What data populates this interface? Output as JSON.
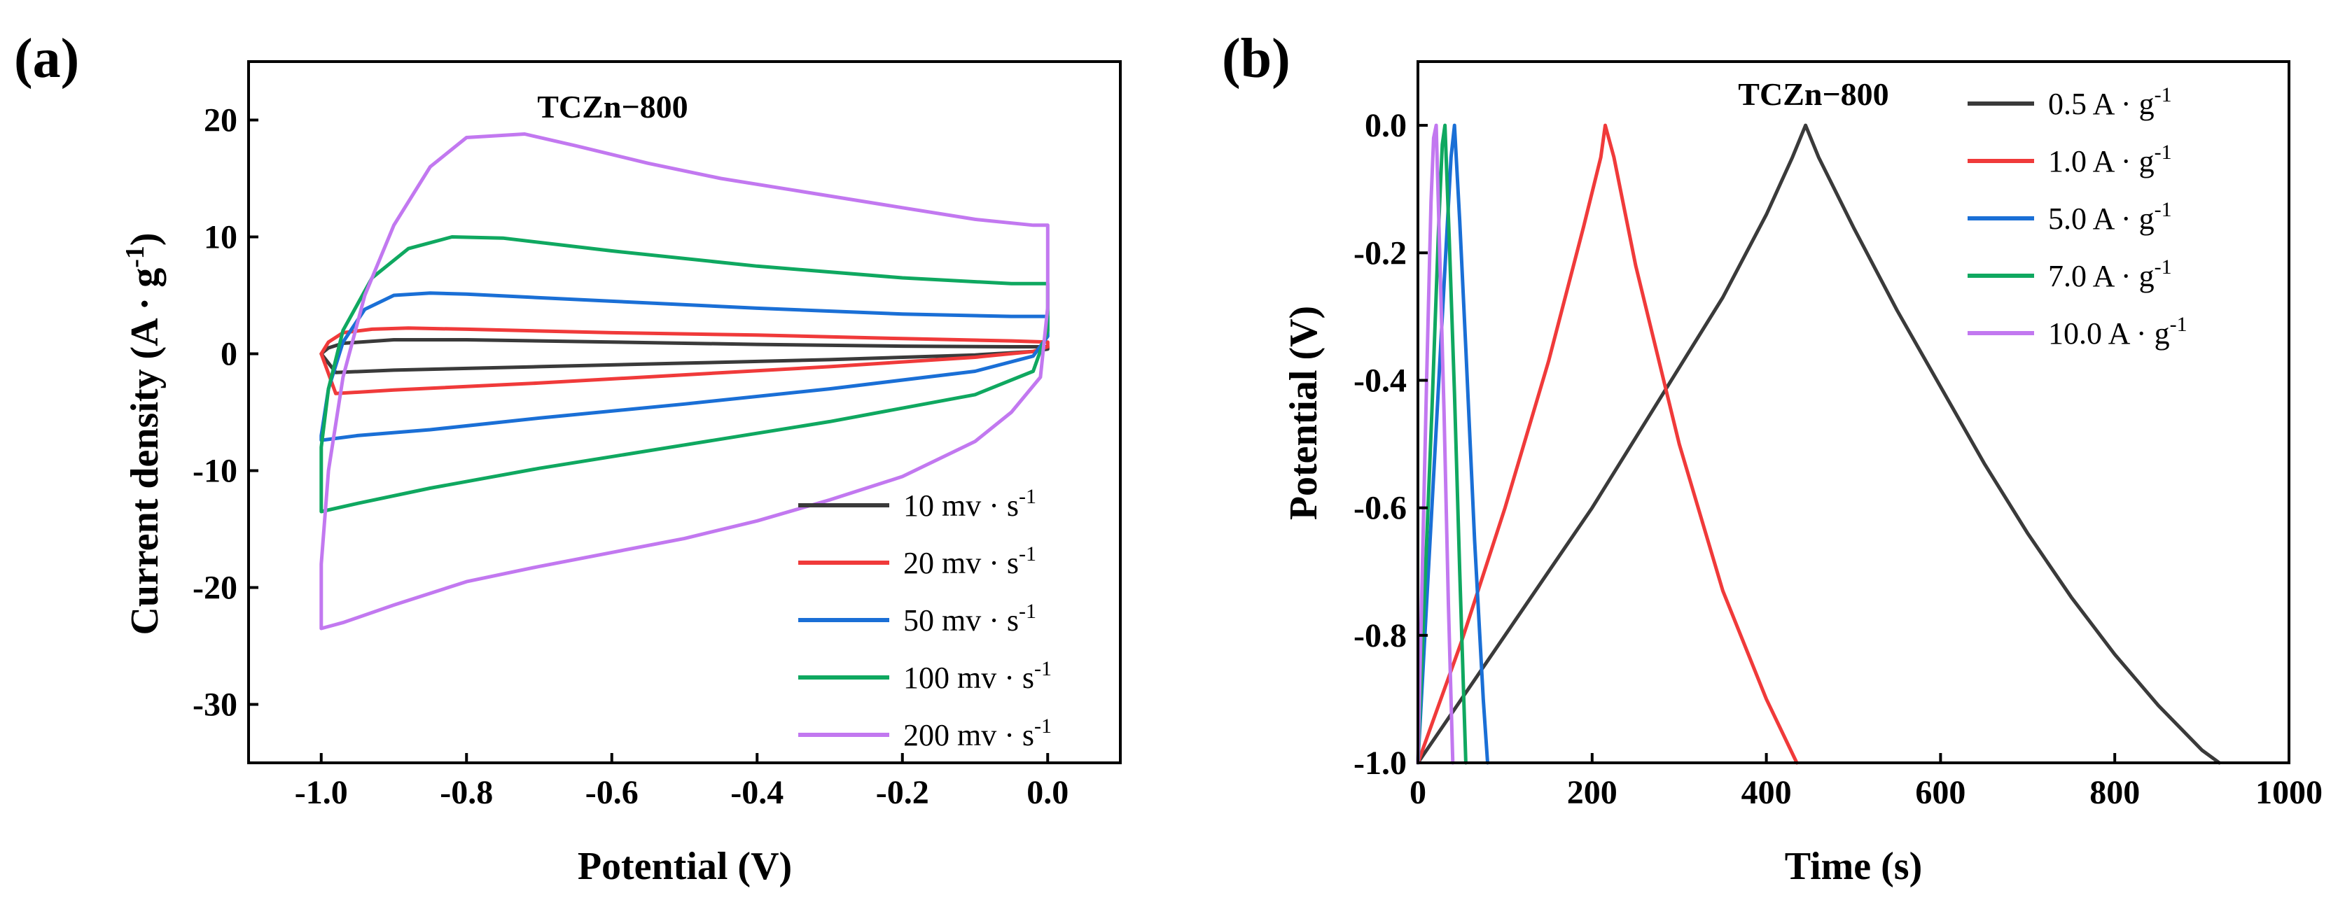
{
  "colors": {
    "black": "#3a3a3a",
    "red": "#f03a3a",
    "blue": "#1a6fd6",
    "green": "#0fa860",
    "violet": "#c278f0"
  },
  "chart_data": [
    {
      "type": "line",
      "panel_label": "(a)",
      "title": "TCZn−800",
      "xlabel": "Potential (V)",
      "ylabel": "Current density (A · g",
      "ylabel_sup": "-1",
      "ylabel_close": ")",
      "xlim": [
        -1.1,
        0.1
      ],
      "ylim": [
        -35,
        25
      ],
      "xticks": [
        -1.0,
        -0.8,
        -0.6,
        -0.4,
        -0.2,
        0.0
      ],
      "xtick_labels": [
        "-1.0",
        "-0.8",
        "-0.6",
        "-0.4",
        "-0.2",
        "0.0"
      ],
      "yticks": [
        -30,
        -20,
        -10,
        0,
        10,
        20
      ],
      "ytick_labels": [
        "-30",
        "-20",
        "-10",
        "0",
        "10",
        "20"
      ],
      "legend_position": "bottom-right",
      "series": [
        {
          "name": "10 mv · s",
          "unit_sup": "-1",
          "color_key": "black",
          "x": [
            -1.0,
            -0.99,
            -0.97,
            -0.9,
            -0.8,
            -0.6,
            -0.4,
            -0.2,
            -0.05,
            0.0,
            0.0,
            -0.02,
            -0.1,
            -0.3,
            -0.5,
            -0.7,
            -0.9,
            -0.98,
            -1.0
          ],
          "y": [
            0.0,
            0.5,
            0.9,
            1.2,
            1.2,
            1.0,
            0.8,
            0.65,
            0.6,
            0.6,
            0.4,
            0.2,
            -0.1,
            -0.5,
            -0.8,
            -1.1,
            -1.4,
            -1.6,
            0.0
          ]
        },
        {
          "name": "20 mv · s",
          "unit_sup": "-1",
          "color_key": "red",
          "x": [
            -1.0,
            -0.99,
            -0.97,
            -0.93,
            -0.88,
            -0.8,
            -0.6,
            -0.4,
            -0.2,
            -0.05,
            0.0,
            0.0,
            -0.02,
            -0.1,
            -0.3,
            -0.5,
            -0.7,
            -0.9,
            -0.98,
            -1.0
          ],
          "y": [
            0.0,
            1.0,
            1.8,
            2.1,
            2.2,
            2.1,
            1.8,
            1.6,
            1.3,
            1.1,
            1.0,
            0.6,
            0.2,
            -0.3,
            -1.1,
            -1.8,
            -2.5,
            -3.1,
            -3.4,
            0.0
          ]
        },
        {
          "name": "50 mv · s",
          "unit_sup": "-1",
          "color_key": "blue",
          "x": [
            -1.0,
            -0.99,
            -0.97,
            -0.94,
            -0.9,
            -0.85,
            -0.8,
            -0.6,
            -0.4,
            -0.2,
            -0.05,
            0.0,
            0.0,
            -0.02,
            -0.1,
            -0.3,
            -0.5,
            -0.7,
            -0.85,
            -0.95,
            -1.0,
            -1.0
          ],
          "y": [
            -7.0,
            -3.0,
            1.0,
            3.8,
            5.0,
            5.2,
            5.1,
            4.5,
            3.9,
            3.4,
            3.2,
            3.2,
            1.5,
            -0.2,
            -1.5,
            -3.0,
            -4.3,
            -5.5,
            -6.5,
            -7.0,
            -7.4,
            -7.0
          ]
        },
        {
          "name": "100 mv · s",
          "unit_sup": "-1",
          "color_key": "green",
          "x": [
            -1.0,
            -1.0,
            -0.99,
            -0.97,
            -0.93,
            -0.88,
            -0.82,
            -0.75,
            -0.6,
            -0.4,
            -0.2,
            -0.05,
            0.0,
            0.0,
            -0.02,
            -0.1,
            -0.3,
            -0.5,
            -0.7,
            -0.85,
            -0.95,
            -1.0,
            -1.0
          ],
          "y": [
            -13.3,
            -8.0,
            -3.0,
            2.0,
            6.5,
            9.0,
            10.0,
            9.9,
            8.8,
            7.5,
            6.5,
            6.0,
            6.0,
            2.0,
            -1.5,
            -3.5,
            -5.8,
            -7.8,
            -9.8,
            -11.5,
            -12.8,
            -13.5,
            -13.3
          ]
        },
        {
          "name": "200 mv · s",
          "unit_sup": "-1",
          "color_key": "violet",
          "x": [
            -1.0,
            -1.0,
            -0.99,
            -0.97,
            -0.94,
            -0.9,
            -0.85,
            -0.8,
            -0.72,
            -0.65,
            -0.55,
            -0.45,
            -0.35,
            -0.2,
            -0.1,
            -0.02,
            0.0,
            0.0,
            -0.01,
            -0.05,
            -0.1,
            -0.2,
            -0.3,
            -0.4,
            -0.5,
            -0.6,
            -0.7,
            -0.8,
            -0.9,
            -0.97,
            -1.0
          ],
          "y": [
            -23.5,
            -18.0,
            -10.0,
            -2.0,
            5.0,
            11.0,
            16.0,
            18.5,
            18.8,
            17.8,
            16.3,
            15.0,
            14.0,
            12.5,
            11.5,
            11.0,
            11.0,
            4.0,
            -2.0,
            -5.0,
            -7.5,
            -10.5,
            -12.5,
            -14.3,
            -15.8,
            -17.0,
            -18.2,
            -19.5,
            -21.5,
            -23.0,
            -23.5
          ]
        }
      ]
    },
    {
      "type": "line",
      "panel_label": "(b)",
      "title": "TCZn−800",
      "xlabel": "Time (s)",
      "ylabel": "Potential (V)",
      "xlim": [
        0,
        1000
      ],
      "ylim": [
        -1.0,
        0.1
      ],
      "xticks": [
        0,
        200,
        400,
        600,
        800,
        1000
      ],
      "xtick_labels": [
        "0",
        "200",
        "400",
        "600",
        "800",
        "1000"
      ],
      "yticks": [
        -1.0,
        -0.8,
        -0.6,
        -0.4,
        -0.2,
        0.0
      ],
      "ytick_labels": [
        "-1.0",
        "-0.8",
        "-0.6",
        "-0.4",
        "-0.2",
        "0.0"
      ],
      "legend_position": "top-right",
      "series": [
        {
          "name": "0.5 A · g",
          "unit_sup": "-1",
          "color_key": "black",
          "x": [
            0,
            50,
            100,
            150,
            200,
            250,
            300,
            350,
            400,
            430,
            445,
            460,
            500,
            550,
            600,
            650,
            700,
            750,
            800,
            850,
            900,
            920
          ],
          "y": [
            -1.0,
            -0.9,
            -0.8,
            -0.7,
            -0.6,
            -0.49,
            -0.38,
            -0.27,
            -0.14,
            -0.05,
            0.0,
            -0.05,
            -0.16,
            -0.29,
            -0.41,
            -0.53,
            -0.64,
            -0.74,
            -0.83,
            -0.91,
            -0.98,
            -1.0
          ]
        },
        {
          "name": "1.0 A · g",
          "unit_sup": "-1",
          "color_key": "red",
          "x": [
            0,
            50,
            100,
            150,
            190,
            210,
            215,
            225,
            250,
            300,
            350,
            400,
            435
          ],
          "y": [
            -1.0,
            -0.81,
            -0.6,
            -0.37,
            -0.16,
            -0.05,
            0.0,
            -0.05,
            -0.22,
            -0.5,
            -0.73,
            -0.9,
            -1.0
          ]
        },
        {
          "name": "5.0 A · g",
          "unit_sup": "-1",
          "color_key": "blue",
          "x": [
            0,
            10,
            20,
            30,
            38,
            42,
            48,
            55,
            65,
            75,
            80
          ],
          "y": [
            -1.0,
            -0.75,
            -0.5,
            -0.25,
            -0.05,
            0.0,
            -0.15,
            -0.35,
            -0.65,
            -0.9,
            -1.0
          ]
        },
        {
          "name": "7.0 A · g",
          "unit_sup": "-1",
          "color_key": "green",
          "x": [
            0,
            8,
            16,
            24,
            28,
            31,
            36,
            42,
            48,
            55
          ],
          "y": [
            -1.0,
            -0.72,
            -0.45,
            -0.15,
            -0.03,
            0.0,
            -0.18,
            -0.42,
            -0.7,
            -1.0
          ]
        },
        {
          "name": "10.0 A · g",
          "unit_sup": "-1",
          "color_key": "violet",
          "x": [
            0,
            5,
            10,
            15,
            18,
            21,
            25,
            30,
            35,
            40
          ],
          "y": [
            -1.0,
            -0.7,
            -0.4,
            -0.12,
            -0.02,
            0.0,
            -0.2,
            -0.45,
            -0.75,
            -1.0
          ]
        }
      ]
    }
  ]
}
